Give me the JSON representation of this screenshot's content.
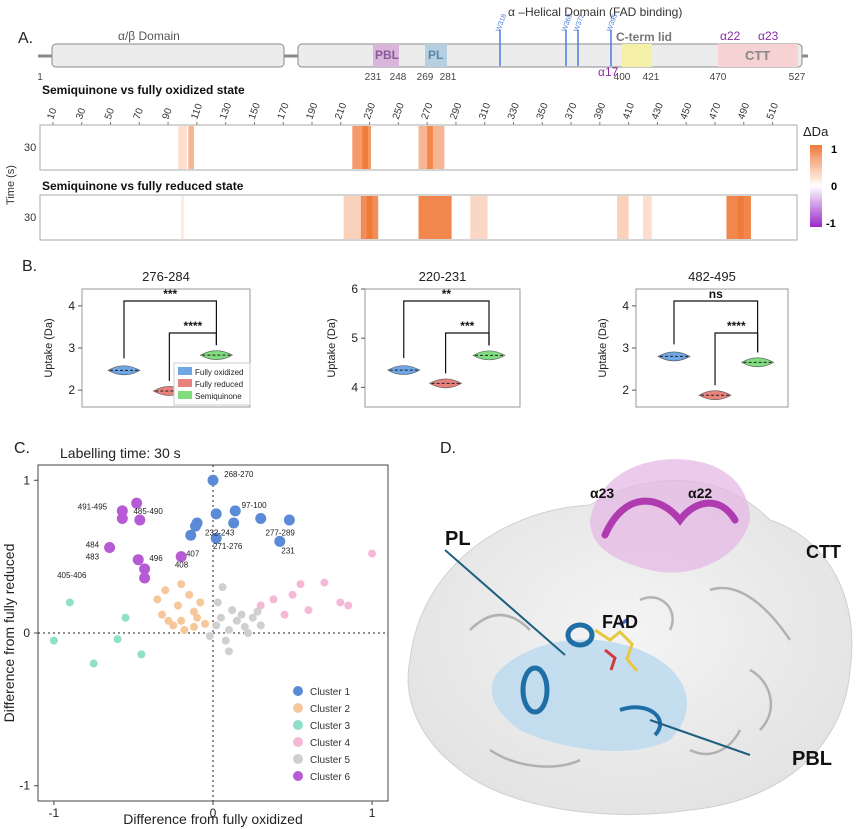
{
  "panels": {
    "a": "A.",
    "b": "B.",
    "c": "C.",
    "d": "D."
  },
  "panel_a": {
    "domain_header": "α –Helical Domain (FAD binding)",
    "alpha_beta_label": "α/β Domain",
    "regions": {
      "pbl": "PBL",
      "pl": "PL",
      "cterm_lid": "C-term lid",
      "ctt": "CTT"
    },
    "helices": {
      "a22": "α22",
      "a23": "α23",
      "a17": "α17"
    },
    "tryptophans": [
      "W318",
      "W369",
      "W372",
      "W395"
    ],
    "positions": [
      "1",
      "231",
      "248",
      "269",
      "281",
      "400",
      "421",
      "470",
      "527"
    ],
    "heat1_title": "Semiquinone vs fully oxidized state",
    "heat2_title": "Semiquinone vs fully reduced state",
    "residue_ticks": [
      "10",
      "30",
      "50",
      "70",
      "90",
      "110",
      "130",
      "150",
      "170",
      "190",
      "210",
      "230",
      "250",
      "270",
      "290",
      "310",
      "330",
      "350",
      "370",
      "390",
      "410",
      "430",
      "450",
      "470",
      "490",
      "510"
    ],
    "time_axis": "Time (s)",
    "time_value": "30",
    "legend_title": "ΔDa",
    "legend_ticks": [
      "1",
      "0",
      "-1"
    ],
    "colors": {
      "pos": "#f07a3a",
      "neg": "#9b27c9",
      "pbl": "#d9b6d9",
      "pl": "#b5cfe0",
      "lid": "#f5f0a8",
      "ctt": "#f6d2d2",
      "trp": "#4a7be0"
    }
  },
  "panel_b": {
    "ylabel": "Uptake (Da)",
    "legend": [
      "Fully oxidized",
      "Fully reduced",
      "Semiquinone"
    ],
    "colors": {
      "ox": "#6ea6e6",
      "red": "#e9827d",
      "semi": "#7fdc7f"
    },
    "plots": [
      {
        "title": "276-284",
        "ylim": [
          1.6,
          4.4
        ],
        "ticks": [
          "2",
          "3",
          "4"
        ],
        "sig_top": "***",
        "sig_bottom": "****",
        "values": [
          2.47,
          1.98,
          2.83
        ]
      },
      {
        "title": "220-231",
        "ylim": [
          3.6,
          6.0
        ],
        "ticks": [
          "4",
          "5",
          "6"
        ],
        "sig_top": "**",
        "sig_bottom": "***",
        "values": [
          4.35,
          4.08,
          4.65
        ]
      },
      {
        "title": "482-495",
        "ylim": [
          1.6,
          4.4
        ],
        "ticks": [
          "2",
          "3",
          "4"
        ],
        "sig_top": "ns",
        "sig_bottom": "****",
        "values": [
          2.8,
          1.88,
          2.66
        ]
      }
    ]
  },
  "chart_data": {
    "type": "scatter",
    "title": "Labelling time: 30 s",
    "xlabel": "Difference from fully oxidized",
    "ylabel": "Difference from fully reduced",
    "xlim": [
      -1.1,
      1.1
    ],
    "ylim": [
      -1.1,
      1.1
    ],
    "xticks": [
      "-1",
      "0",
      "1"
    ],
    "yticks": [
      "-1",
      "0",
      "1"
    ],
    "legend_position": "bottom-right",
    "series": [
      {
        "name": "Cluster 1",
        "color": "#5b8bd6",
        "points": [
          [
            0,
            1.0
          ],
          [
            0.14,
            0.8
          ],
          [
            0.02,
            0.78
          ],
          [
            0.3,
            0.75
          ],
          [
            0.48,
            0.74
          ],
          [
            0.13,
            0.72
          ],
          [
            -0.1,
            0.72
          ],
          [
            -0.11,
            0.7
          ],
          [
            0.02,
            0.62
          ],
          [
            -0.14,
            0.64
          ],
          [
            0.42,
            0.6
          ]
        ]
      },
      {
        "name": "Cluster 2",
        "color": "#f6c79b",
        "points": [
          [
            -0.35,
            0.22
          ],
          [
            -0.3,
            0.28
          ],
          [
            -0.2,
            0.32
          ],
          [
            -0.12,
            0.14
          ],
          [
            -0.25,
            0.05
          ],
          [
            -0.18,
            0.02
          ],
          [
            -0.1,
            0.1
          ],
          [
            -0.32,
            0.12
          ],
          [
            -0.22,
            0.18
          ],
          [
            -0.05,
            0.06
          ],
          [
            -0.15,
            0.25
          ],
          [
            -0.28,
            0.08
          ],
          [
            -0.08,
            0.2
          ],
          [
            -0.2,
            0.08
          ],
          [
            -0.12,
            0.04
          ]
        ]
      },
      {
        "name": "Cluster 3",
        "color": "#8fe0c8",
        "points": [
          [
            -0.9,
            0.2
          ],
          [
            -1.0,
            -0.05
          ],
          [
            -0.75,
            -0.2
          ],
          [
            -0.6,
            -0.04
          ],
          [
            -0.45,
            -0.14
          ],
          [
            -0.55,
            0.1
          ]
        ]
      },
      {
        "name": "Cluster 4",
        "color": "#f5b8d6",
        "points": [
          [
            0.5,
            0.25
          ],
          [
            0.55,
            0.32
          ],
          [
            0.7,
            0.33
          ],
          [
            0.8,
            0.2
          ],
          [
            0.85,
            0.18
          ],
          [
            0.45,
            0.12
          ],
          [
            0.6,
            0.15
          ],
          [
            1.0,
            0.52
          ],
          [
            0.3,
            0.18
          ],
          [
            0.38,
            0.22
          ]
        ]
      },
      {
        "name": "Cluster 5",
        "color": "#cfcfcf",
        "points": [
          [
            0.02,
            0.05
          ],
          [
            0.05,
            0.1
          ],
          [
            0.1,
            0.02
          ],
          [
            0.15,
            0.08
          ],
          [
            0.2,
            0.04
          ],
          [
            0.25,
            0.1
          ],
          [
            0.3,
            0.05
          ],
          [
            -0.02,
            -0.02
          ],
          [
            0.08,
            -0.05
          ],
          [
            0.12,
            0.15
          ],
          [
            0.18,
            0.12
          ],
          [
            0.06,
            0.3
          ],
          [
            0.1,
            -0.12
          ],
          [
            0.22,
            0.0
          ],
          [
            0.28,
            0.14
          ],
          [
            0.03,
            0.2
          ]
        ]
      },
      {
        "name": "Cluster 6",
        "color": "#b65ad6",
        "points": [
          [
            -0.57,
            0.8
          ],
          [
            -0.48,
            0.85
          ],
          [
            -0.57,
            0.75
          ],
          [
            -0.46,
            0.74
          ],
          [
            -0.65,
            0.56
          ],
          [
            -0.47,
            0.48
          ],
          [
            -0.2,
            0.5
          ],
          [
            -0.43,
            0.42
          ],
          [
            -0.43,
            0.36
          ]
        ]
      }
    ],
    "annotations": [
      "268-270",
      "97-100",
      "491-495",
      "485-490",
      "277-289",
      "232-243",
      "231",
      "271-276",
      "484",
      "483",
      "496",
      "407",
      "408",
      "405-406"
    ]
  },
  "panel_d": {
    "labels": {
      "a23": "α23",
      "a22": "α22",
      "pl": "PL",
      "ctt": "CTT",
      "fad": "FAD",
      "pbl": "PBL"
    }
  }
}
